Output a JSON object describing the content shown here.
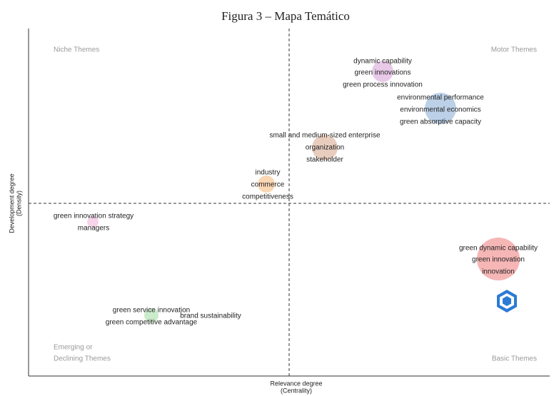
{
  "title": "Figura 3 – Mapa Temático",
  "x_axis": {
    "label": "Relevance degree",
    "sublabel": "(Centrality)"
  },
  "y_axis": {
    "label": "Development degree",
    "sublabel": "(Density)"
  },
  "quadrants": {
    "top_left": [
      "Niche Themes"
    ],
    "top_right": [
      "Motor Themes"
    ],
    "bottom_left": [
      "Emerging or",
      "Declining Themes"
    ],
    "bottom_right": [
      "Basic Themes"
    ]
  },
  "clusters": [
    {
      "color": "#d9a6d9",
      "labels": [
        "dynamic capability",
        "green innovations",
        "green process innovation"
      ]
    },
    {
      "color": "#8fb3d9",
      "labels": [
        "environmental performance",
        "environmental economics",
        "green absorptive capacity"
      ]
    },
    {
      "color": "#d9ab95",
      "labels": [
        "small and medium-sized enterprise",
        "organization",
        "stakeholder"
      ]
    },
    {
      "color": "#f5bd80",
      "labels": [
        "industry",
        "commerce",
        "competitiveness"
      ]
    },
    {
      "color": "#f2b8dc",
      "labels": [
        "green innovation strategy",
        "managers"
      ]
    },
    {
      "color": "#f08585",
      "labels": [
        "green dynamic capability",
        "green innovation",
        "innovation"
      ]
    },
    {
      "color": "#a8e0a8",
      "labels": [
        "green service innovation",
        "brand sustainability",
        "green competitive advantage"
      ]
    }
  ]
}
